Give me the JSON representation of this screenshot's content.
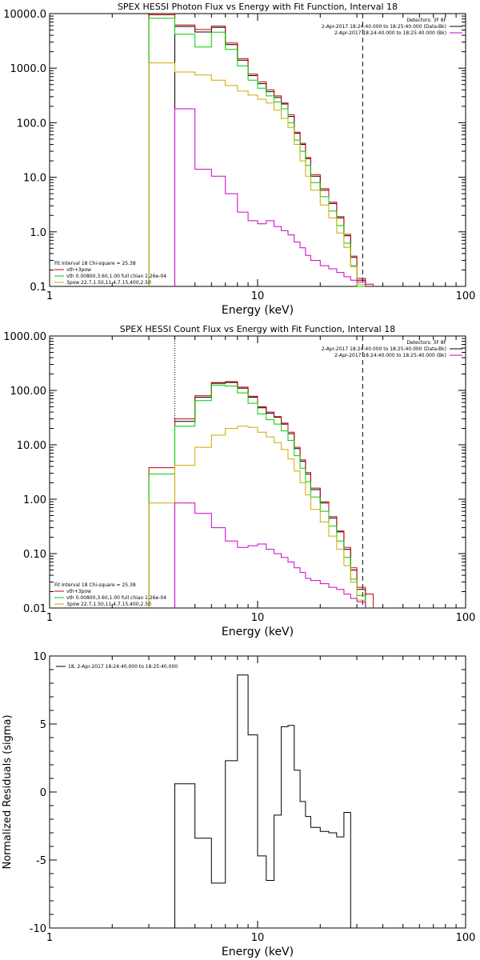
{
  "chart_data": [
    {
      "type": "line",
      "title": "SPEX HESSI Photon Flux vs Energy with Fit Function, Interval 18",
      "xlabel": "Energy (keV)",
      "ylabel": "",
      "x_scale": "log",
      "y_scale": "log",
      "xlim": [
        1,
        100
      ],
      "ylim": [
        0.1,
        10000
      ],
      "x_ticks": [
        {
          "v": 1,
          "label": "1"
        },
        {
          "v": 10,
          "label": "10"
        },
        {
          "v": 100,
          "label": "100"
        }
      ],
      "y_ticks": [
        {
          "v": 10000,
          "label": "10000.0"
        },
        {
          "v": 1000,
          "label": "1000.0"
        },
        {
          "v": 100,
          "label": "100.0"
        },
        {
          "v": 10,
          "label": "10.0"
        },
        {
          "v": 1,
          "label": "1.0"
        },
        {
          "v": 0.1,
          "label": "0.1"
        }
      ],
      "vlines": [
        {
          "x": 4.0,
          "style": "dotted",
          "color": "#000000"
        },
        {
          "x": 32.0,
          "style": "dashed",
          "color": "#000000"
        }
      ],
      "legend_tr": {
        "position": "top-right",
        "entries": [
          {
            "text": "Detectors: 3F 8F",
            "color": ""
          },
          {
            "text": "2-Apr-2017 18:24:40.000 to 18:25:40.000 (Data-Bk)",
            "color": "#000000"
          },
          {
            "text": "2-Apr-2017 18:24:40.000 to 18:25:40.000 (Bk)",
            "color": "#cc00cc"
          }
        ]
      },
      "legend_bl": {
        "position": "bottom-left",
        "entries": [
          {
            "text": "Fit Interval 18    Chi-square = 25.38",
            "color": ""
          },
          {
            "text": "vth+3pow",
            "color": "#cc0000"
          },
          {
            "text": "vth 0.00800,3.60,1.00  full chian 1.26e-04",
            "color": "#00cc00"
          },
          {
            "text": "3pow 22.7,1.50,11.4,7.15,400,2.50",
            "color": "#ccaa00"
          }
        ]
      },
      "edges": [
        3,
        4,
        5,
        6,
        7,
        8,
        9,
        10,
        11,
        12,
        13,
        14,
        15,
        16,
        17,
        18,
        20,
        22,
        24,
        26,
        28,
        30,
        33,
        36
      ],
      "series": [
        {
          "color": "#000000",
          "values": [
            null,
            5800,
            4600,
            5600,
            2700,
            1400,
            730,
            520,
            370,
            290,
            220,
            130,
            64,
            40,
            22,
            10.5,
            5.8,
            3.3,
            1.8,
            0.85,
            0.34,
            0.13,
            null
          ]
        },
        {
          "color": "#cc0000",
          "values": [
            9500,
            6200,
            5100,
            5900,
            2900,
            1500,
            780,
            560,
            400,
            310,
            230,
            140,
            67,
            42,
            23,
            11.2,
            6.2,
            3.5,
            1.9,
            0.9,
            0.36,
            0.14,
            0.11
          ]
        },
        {
          "color": "#00cc00",
          "values": [
            8200,
            4200,
            2450,
            4550,
            2200,
            1100,
            600,
            430,
            310,
            240,
            180,
            100,
            48,
            30,
            16.5,
            8.0,
            4.4,
            2.4,
            1.3,
            0.62,
            0.24,
            0.1,
            null
          ]
        },
        {
          "color": "#ccaa00",
          "values": [
            1250,
            850,
            750,
            600,
            480,
            380,
            320,
            270,
            230,
            170,
            120,
            82,
            40,
            20,
            10.5,
            5.8,
            3.1,
            1.8,
            0.95,
            0.52,
            0.23,
            0.11,
            null
          ]
        },
        {
          "color": "#cc00cc",
          "values": [
            null,
            180,
            14,
            10.5,
            5.0,
            2.3,
            1.6,
            1.4,
            1.6,
            1.25,
            1.05,
            0.88,
            0.65,
            0.51,
            0.37,
            0.3,
            0.24,
            0.21,
            0.18,
            0.15,
            0.13,
            0.12,
            null
          ]
        }
      ]
    },
    {
      "type": "line",
      "title": "SPEX HESSI Count Flux vs Energy with Fit Function, Interval 18",
      "xlabel": "Energy (keV)",
      "ylabel": "",
      "x_scale": "log",
      "y_scale": "log",
      "xlim": [
        1,
        100
      ],
      "ylim": [
        0.01,
        1000
      ],
      "x_ticks": [
        {
          "v": 1,
          "label": "1"
        },
        {
          "v": 10,
          "label": "10"
        },
        {
          "v": 100,
          "label": "100"
        }
      ],
      "y_ticks": [
        {
          "v": 1000,
          "label": "1000.00"
        },
        {
          "v": 100,
          "label": "100.00"
        },
        {
          "v": 10,
          "label": "10.00"
        },
        {
          "v": 1,
          "label": "1.00"
        },
        {
          "v": 0.1,
          "label": "0.10"
        },
        {
          "v": 0.01,
          "label": "0.01"
        }
      ],
      "vlines": [
        {
          "x": 4.0,
          "style": "dotted",
          "color": "#000000"
        },
        {
          "x": 32.0,
          "style": "dashed",
          "color": "#000000"
        }
      ],
      "legend_tr": {
        "position": "top-right",
        "entries": [
          {
            "text": "Detectors: 3F 8F",
            "color": ""
          },
          {
            "text": "2-Apr-2017 18:24:40.000 to 18:25:40.000 (Data-Bk)",
            "color": "#000000"
          },
          {
            "text": "2-Apr-2017 18:24:40.000 to 18:25:40.000 (Bk)",
            "color": "#cc00cc"
          }
        ]
      },
      "legend_bl": {
        "position": "bottom-left",
        "entries": [
          {
            "text": "Fit Interval 18    Chi-square = 25.38",
            "color": ""
          },
          {
            "text": "vth+3pow",
            "color": "#cc0000"
          },
          {
            "text": "vth 0.00800,3.60,1.00  full chian 1.26e-04",
            "color": "#00cc00"
          },
          {
            "text": "3pow 22.7,1.50,11.4,7.15,400,2.50",
            "color": "#ccaa00"
          }
        ]
      },
      "edges": [
        3,
        4,
        5,
        6,
        7,
        8,
        9,
        10,
        11,
        12,
        13,
        14,
        15,
        16,
        17,
        18,
        20,
        22,
        24,
        26,
        28,
        30,
        33,
        36
      ],
      "series": [
        {
          "color": "#000000",
          "values": [
            null,
            27,
            75,
            135,
            140,
            110,
            75,
            48,
            38,
            32,
            24,
            16,
            8.5,
            5.0,
            2.9,
            1.5,
            0.85,
            0.45,
            0.25,
            0.12,
            0.05,
            0.022,
            null
          ]
        },
        {
          "color": "#cc0000",
          "values": [
            3.8,
            30,
            80,
            140,
            145,
            115,
            78,
            50,
            40,
            33,
            25,
            17,
            9.0,
            5.3,
            3.1,
            1.6,
            0.9,
            0.48,
            0.26,
            0.13,
            0.055,
            0.024,
            0.018
          ]
        },
        {
          "color": "#00cc00",
          "values": [
            2.9,
            22,
            65,
            125,
            120,
            90,
            58,
            37,
            29,
            24,
            18,
            12,
            6.3,
            3.7,
            2.1,
            1.1,
            0.6,
            0.32,
            0.17,
            0.085,
            0.034,
            0.017,
            null
          ]
        },
        {
          "color": "#ccaa00",
          "values": [
            0.85,
            4.2,
            9,
            15,
            20,
            22,
            21,
            17,
            14,
            11,
            8.2,
            5.5,
            3.3,
            2.0,
            1.2,
            0.65,
            0.38,
            0.21,
            0.12,
            0.06,
            0.03,
            0.014,
            null
          ]
        },
        {
          "color": "#cc00cc",
          "values": [
            null,
            0.85,
            0.55,
            0.3,
            0.17,
            0.13,
            0.14,
            0.15,
            0.12,
            0.1,
            0.085,
            0.07,
            0.055,
            0.045,
            0.035,
            0.032,
            0.028,
            0.024,
            0.022,
            0.018,
            0.015,
            0.013,
            null
          ]
        }
      ]
    },
    {
      "type": "line",
      "title": "",
      "xlabel": "Energy (keV)",
      "ylabel": "Normalized Residuals (sigma)",
      "x_scale": "log",
      "y_scale": "linear",
      "xlim": [
        1,
        100
      ],
      "ylim": [
        -10,
        10
      ],
      "x_ticks": [
        {
          "v": 1,
          "label": "1"
        },
        {
          "v": 10,
          "label": "10"
        },
        {
          "v": 100,
          "label": "100"
        }
      ],
      "y_ticks": [
        {
          "v": 10,
          "label": "10"
        },
        {
          "v": 5,
          "label": "5"
        },
        {
          "v": 0,
          "label": "0"
        },
        {
          "v": -5,
          "label": "-5"
        },
        {
          "v": -10,
          "label": "-10"
        }
      ],
      "vlines": [],
      "legend_tr": null,
      "legend_tl": {
        "position": "top-left",
        "entries": [
          {
            "text": "18,  2-Apr-2017 18:24:40.000 to 18:25:40.000",
            "color": "#000000"
          }
        ]
      },
      "legend_bl": null,
      "edges": [
        4,
        5,
        6,
        7,
        8,
        9,
        10,
        11,
        12,
        13,
        14,
        15,
        16,
        17,
        18,
        20,
        22,
        24,
        26,
        28,
        30,
        33
      ],
      "series": [
        {
          "color": "#000000",
          "drop_to_bottom": true,
          "values": [
            0.6,
            -3.4,
            -6.7,
            2.3,
            8.6,
            4.2,
            -4.7,
            -6.5,
            -1.7,
            4.8,
            4.9,
            1.6,
            -0.7,
            -1.8,
            -2.6,
            -2.9,
            -3.0,
            -3.3,
            -1.5
          ]
        }
      ]
    }
  ]
}
